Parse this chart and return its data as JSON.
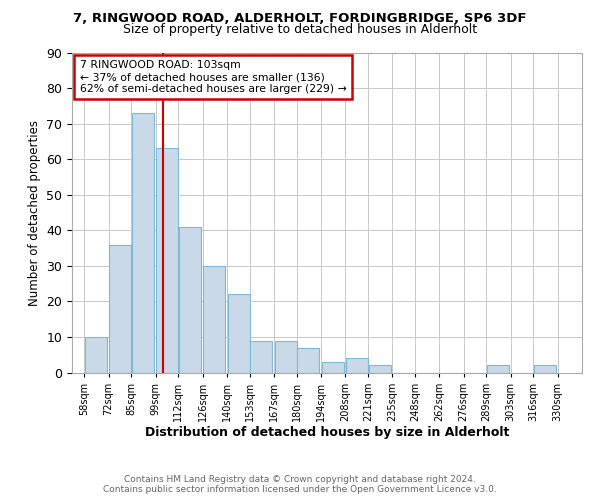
{
  "title1": "7, RINGWOOD ROAD, ALDERHOLT, FORDINGBRIDGE, SP6 3DF",
  "title2": "Size of property relative to detached houses in Alderholt",
  "xlabel": "Distribution of detached houses by size in Alderholt",
  "ylabel": "Number of detached properties",
  "footnote1": "Contains HM Land Registry data © Crown copyright and database right 2024.",
  "footnote2": "Contains public sector information licensed under the Open Government Licence v3.0.",
  "annotation_line1": "7 RINGWOOD ROAD: 103sqm",
  "annotation_line2": "← 37% of detached houses are smaller (136)",
  "annotation_line3": "62% of semi-detached houses are larger (229) →",
  "property_size": 103,
  "bar_left_edges": [
    58,
    72,
    85,
    99,
    112,
    126,
    140,
    153,
    167,
    180,
    194,
    208,
    221,
    235,
    248,
    262,
    276,
    289,
    303,
    316
  ],
  "bar_widths": [
    14,
    13,
    14,
    13,
    14,
    14,
    13,
    14,
    13,
    14,
    14,
    13,
    14,
    13,
    14,
    14,
    13,
    14,
    13,
    14
  ],
  "bar_heights": [
    10,
    36,
    73,
    63,
    41,
    30,
    22,
    9,
    9,
    7,
    3,
    4,
    2,
    0,
    0,
    0,
    0,
    2,
    0,
    2
  ],
  "tick_labels": [
    "58sqm",
    "72sqm",
    "85sqm",
    "99sqm",
    "112sqm",
    "126sqm",
    "140sqm",
    "153sqm",
    "167sqm",
    "180sqm",
    "194sqm",
    "208sqm",
    "221sqm",
    "235sqm",
    "248sqm",
    "262sqm",
    "276sqm",
    "289sqm",
    "303sqm",
    "316sqm",
    "330sqm"
  ],
  "tick_positions": [
    58,
    72,
    85,
    99,
    112,
    126,
    140,
    153,
    167,
    180,
    194,
    208,
    221,
    235,
    248,
    262,
    276,
    289,
    303,
    316,
    330
  ],
  "bar_color": "#c9d9e8",
  "bar_edge_color": "#7fb9d8",
  "vline_color": "#cc0000",
  "vline_x": 103,
  "ylim": [
    0,
    90
  ],
  "yticks": [
    0,
    10,
    20,
    30,
    40,
    50,
    60,
    70,
    80,
    90
  ],
  "xlim_left": 51,
  "xlim_right": 344,
  "bg_color": "#ffffff",
  "grid_color": "#c8c8c8",
  "annotation_box_color": "#cc0000",
  "title1_fontsize": 9.5,
  "title2_fontsize": 9.0,
  "xlabel_fontsize": 9.0,
  "ylabel_fontsize": 8.5,
  "annot_fontsize": 7.8,
  "footnote_fontsize": 6.5
}
